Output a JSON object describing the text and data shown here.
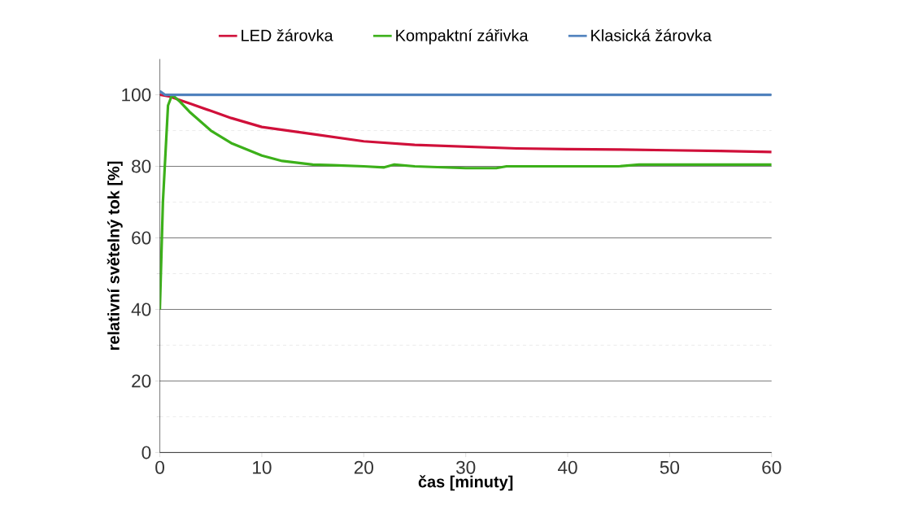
{
  "chart_data": {
    "type": "line",
    "xlabel": "čas [minuty]",
    "ylabel": "relativní světelný tok  [%]",
    "xlim": [
      0,
      60
    ],
    "ylim": [
      0,
      110
    ],
    "xticks": [
      0,
      10,
      20,
      30,
      40,
      50,
      60
    ],
    "yticks": [
      0,
      20,
      40,
      60,
      80,
      100
    ],
    "grid": "y",
    "legend": "top",
    "marker": "none",
    "line_style": "solid",
    "series": [
      {
        "name": "LED žárovka",
        "color": "#d0103a",
        "x": [
          0,
          1,
          2,
          3,
          5,
          7,
          10,
          15,
          20,
          25,
          30,
          35,
          40,
          45,
          50,
          55,
          60
        ],
        "values": [
          100,
          99.5,
          98.5,
          97.5,
          95.5,
          93.5,
          91,
          89,
          87,
          86,
          85.5,
          85,
          84.8,
          84.7,
          84.5,
          84.3,
          84
        ]
      },
      {
        "name": "Kompaktní zářivka",
        "color": "#3cb01a",
        "x": [
          0,
          0.3,
          0.8,
          1.2,
          2,
          3,
          5,
          7,
          10,
          12,
          15,
          17,
          20,
          22,
          23,
          25,
          30,
          33,
          34,
          40,
          45,
          47,
          50,
          60
        ],
        "values": [
          40,
          70,
          97,
          100,
          98,
          95,
          90,
          86.5,
          83,
          81.5,
          80.5,
          80.3,
          80,
          79.7,
          80.5,
          80,
          79.5,
          79.5,
          80,
          80,
          80,
          80.5,
          80.5,
          80.5
        ]
      },
      {
        "name": "Klasická žárovka",
        "color": "#4f81bd",
        "x": [
          0,
          0.5,
          3,
          60
        ],
        "values": [
          101,
          100,
          100,
          100
        ]
      }
    ]
  }
}
